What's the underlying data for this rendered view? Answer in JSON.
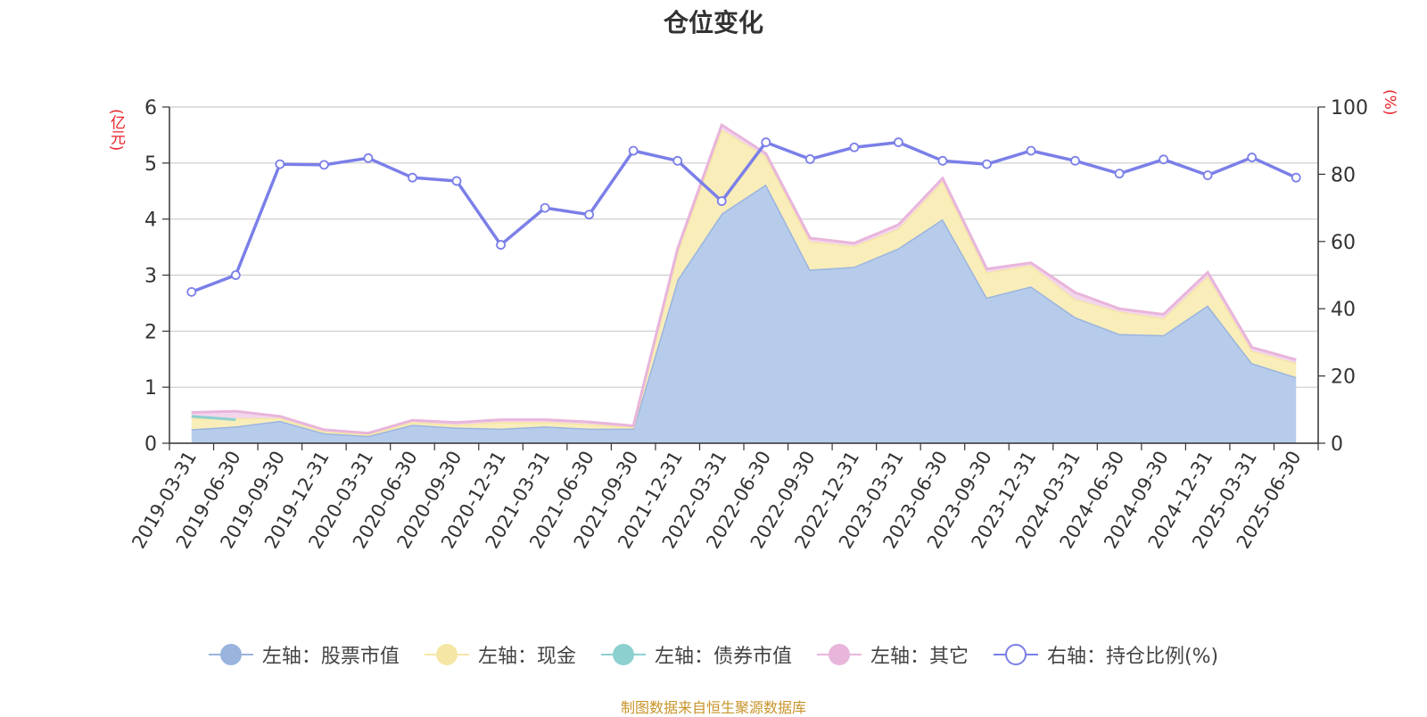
{
  "chart_data": {
    "type": "area",
    "title": "仓位变化",
    "left_unit": "(亿元)",
    "right_unit": "(%)",
    "categories": [
      "2019-03-31",
      "2019-06-30",
      "2019-09-30",
      "2019-12-31",
      "2020-03-31",
      "2020-06-30",
      "2020-09-30",
      "2020-12-31",
      "2021-03-31",
      "2021-06-30",
      "2021-09-30",
      "2021-12-31",
      "2022-03-31",
      "2022-06-30",
      "2022-09-30",
      "2022-12-31",
      "2023-03-31",
      "2023-06-30",
      "2023-09-30",
      "2023-12-31",
      "2024-03-31",
      "2024-06-30",
      "2024-09-30",
      "2024-12-31",
      "2025-03-31",
      "2025-06-30"
    ],
    "y_left_ticks": [
      "0",
      "1",
      "2",
      "3",
      "4",
      "5",
      "6"
    ],
    "y_right_ticks": [
      "0",
      "20",
      "40",
      "60",
      "80",
      "100"
    ],
    "ylim_left": [
      0,
      6
    ],
    "ylim_right": [
      0,
      100
    ],
    "grid": true,
    "legend_position": "bottom",
    "series": [
      {
        "name": "左轴：股票市值",
        "axis": "left",
        "stack": true,
        "color": "#9ab4de",
        "fill": "#b7cceb",
        "values": [
          0.25,
          0.3,
          0.4,
          0.18,
          0.13,
          0.33,
          0.28,
          0.26,
          0.3,
          0.26,
          0.26,
          2.92,
          4.1,
          4.62,
          3.1,
          3.15,
          3.48,
          4.0,
          2.6,
          2.8,
          2.25,
          1.95,
          1.93,
          2.46,
          1.43,
          1.18
        ]
      },
      {
        "name": "左轴：现金",
        "axis": "left",
        "stack": true,
        "color": "#f5e6a5",
        "fill": "#f9edba",
        "values": [
          0.2,
          0.15,
          0.05,
          0.03,
          0.03,
          0.05,
          0.05,
          0.12,
          0.08,
          0.08,
          0.03,
          0.5,
          1.5,
          0.5,
          0.5,
          0.37,
          0.35,
          0.68,
          0.45,
          0.38,
          0.32,
          0.4,
          0.3,
          0.52,
          0.22,
          0.25
        ]
      },
      {
        "name": "左轴：债券市值",
        "axis": "left",
        "stack": false,
        "color": "#8dd0d0",
        "values": [
          0.48,
          0.42,
          null,
          null,
          null,
          null,
          null,
          null,
          null,
          null,
          null,
          null,
          null,
          null,
          null,
          null,
          null,
          null,
          null,
          null,
          null,
          null,
          null,
          null,
          null,
          null
        ]
      },
      {
        "name": "左轴：其它",
        "axis": "left",
        "stack": true,
        "color": "#e8b5db",
        "fill": "#f3d6ec",
        "values": [
          0.1,
          0.12,
          0.03,
          0.03,
          0.02,
          0.03,
          0.04,
          0.04,
          0.04,
          0.04,
          0.02,
          0.05,
          0.08,
          0.05,
          0.06,
          0.05,
          0.07,
          0.05,
          0.06,
          0.04,
          0.12,
          0.05,
          0.07,
          0.07,
          0.06,
          0.06
        ]
      },
      {
        "name": "右轴：持仓比例(%)",
        "axis": "right",
        "stack": false,
        "color": "#7b7fe8",
        "values": [
          45,
          50,
          83,
          82.8,
          84.8,
          79,
          78,
          59,
          70,
          68,
          87,
          84,
          72,
          89.5,
          84.5,
          88,
          89.5,
          84,
          83,
          87,
          84,
          80.2,
          84.4,
          79.7,
          85,
          79
        ]
      }
    ]
  },
  "source_note": "制图数据来自恒生聚源数据库"
}
